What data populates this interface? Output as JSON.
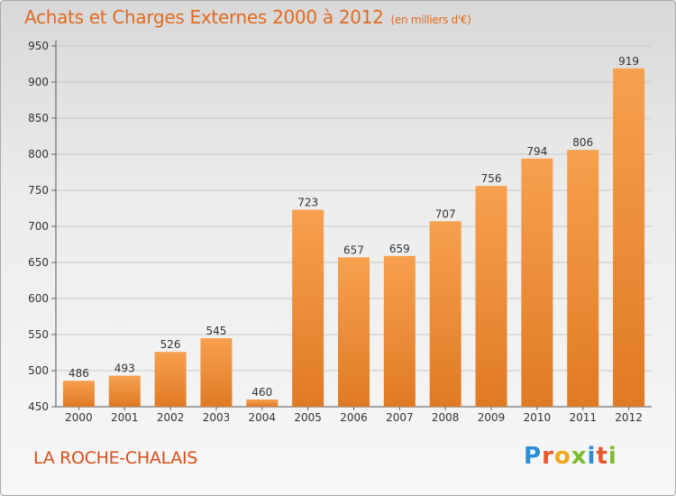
{
  "header": {
    "title": "Achats et Charges Externes 2000 à 2012",
    "unit": "(en milliers d'€)"
  },
  "footer": {
    "commune": "LA ROCHE-CHALAIS",
    "logo": "Proxiti"
  },
  "colors": {
    "bar_top": "#f7a04e",
    "bar_bottom": "#e07a24",
    "title": "#e06a20",
    "grid": "#c8c8c8"
  },
  "chart_data": {
    "type": "bar",
    "title": "Achats et Charges Externes 2000 à 2012",
    "subtitle": "(en milliers d'€)",
    "xlabel": "",
    "ylabel": "",
    "categories": [
      "2000",
      "2001",
      "2002",
      "2003",
      "2004",
      "2005",
      "2006",
      "2007",
      "2008",
      "2009",
      "2010",
      "2011",
      "2012"
    ],
    "values": [
      486,
      493,
      526,
      545,
      460,
      723,
      657,
      659,
      707,
      756,
      794,
      806,
      919
    ],
    "ylim": [
      450,
      950
    ],
    "yticks": [
      450,
      500,
      550,
      600,
      650,
      700,
      750,
      800,
      850,
      900,
      950
    ],
    "grid": true,
    "data_labels": true
  }
}
